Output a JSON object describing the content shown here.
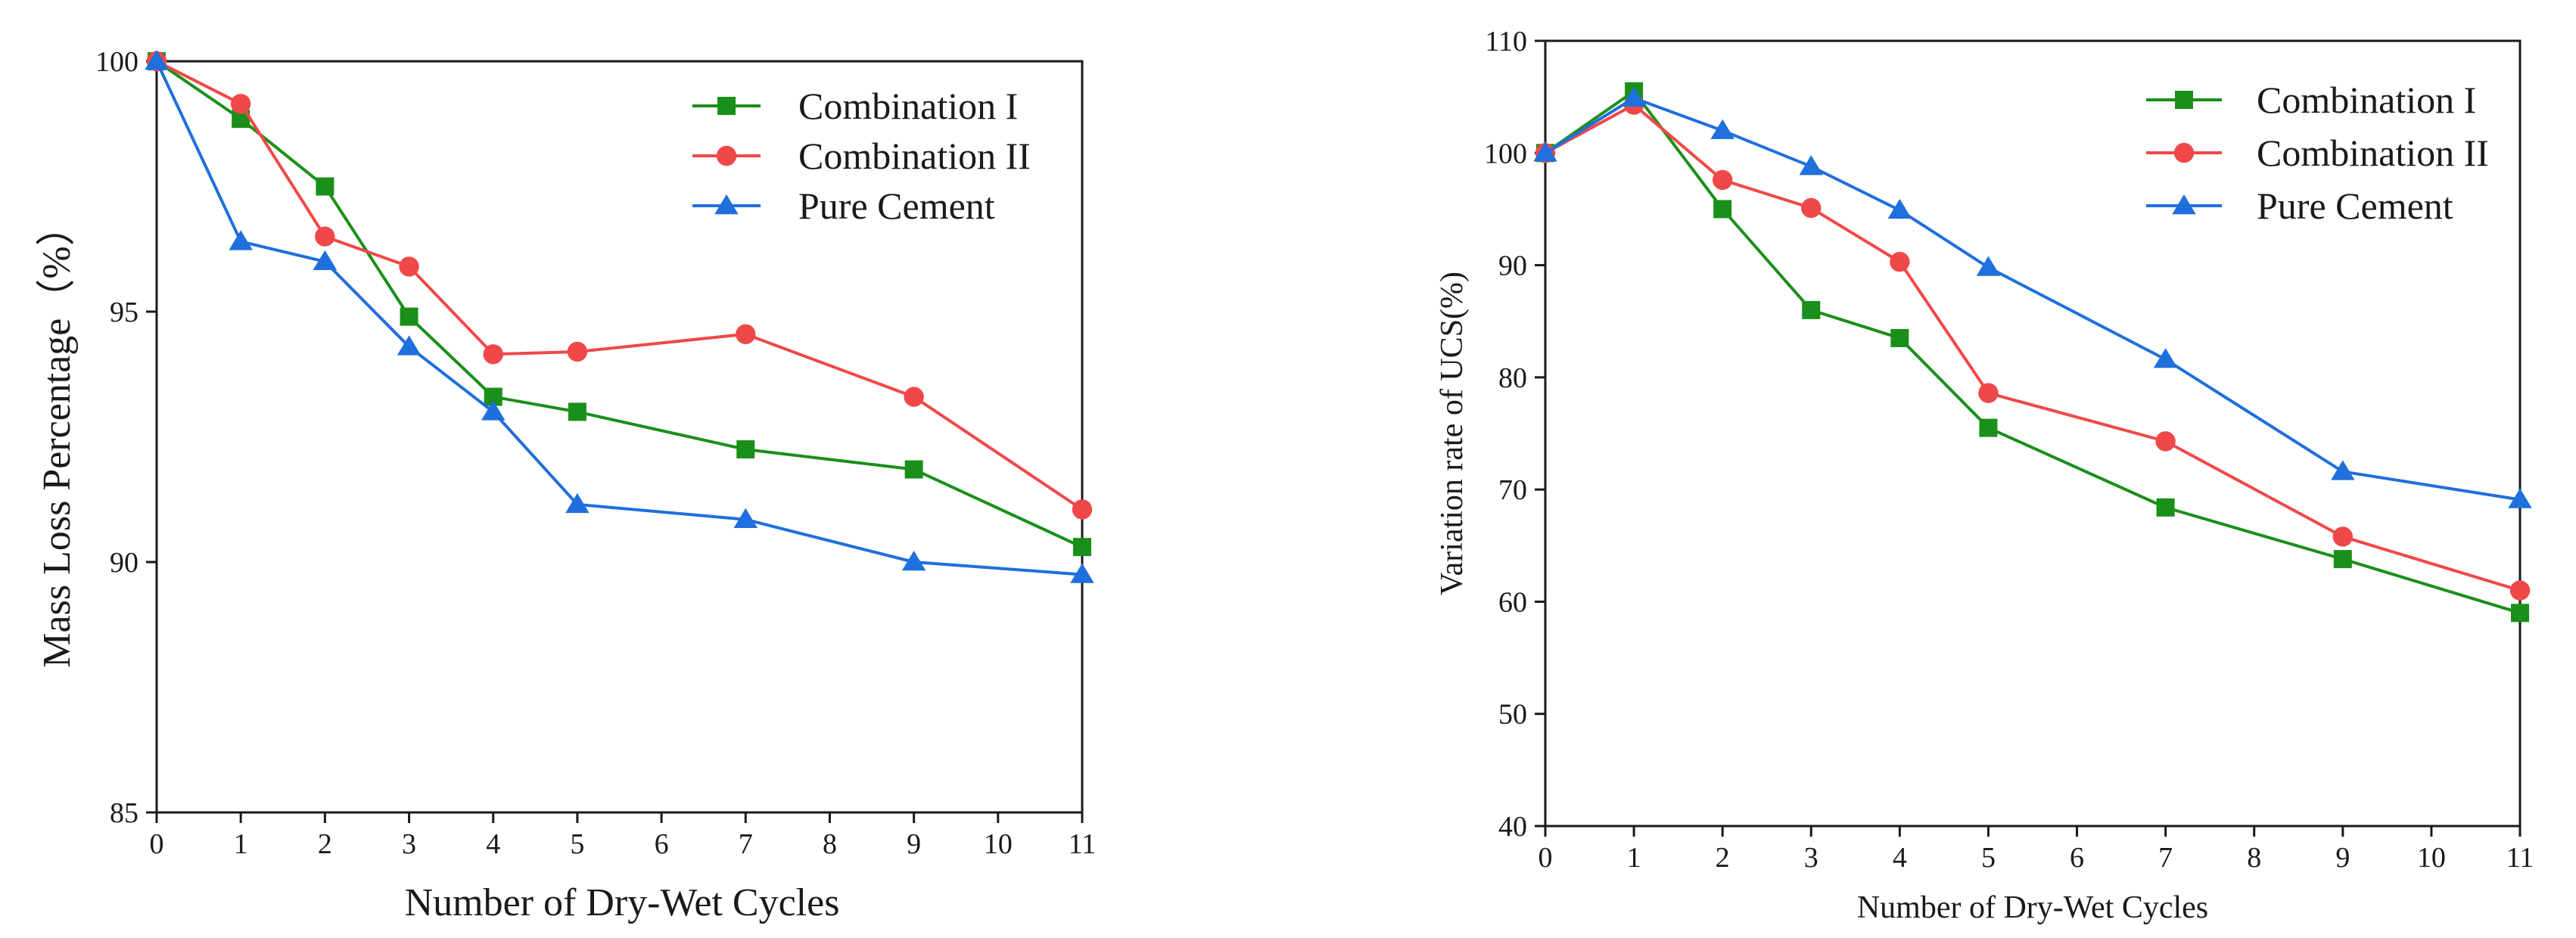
{
  "chart_data": [
    {
      "type": "line",
      "title": "",
      "xlabel": "Number of Dry-Wet Cycles",
      "ylabel": "Mass Loss Percentage（%）",
      "xlim": [
        0,
        11
      ],
      "ylim": [
        85,
        100
      ],
      "xticks": [
        0,
        1,
        2,
        3,
        4,
        5,
        6,
        7,
        8,
        9,
        10,
        11
      ],
      "yticks": [
        85,
        90,
        95,
        100
      ],
      "legend_position": "top-right",
      "grid": false,
      "series": [
        {
          "name": "Combination I",
          "color": "#1a8f1a",
          "marker": "square",
          "x": [
            0,
            1,
            2,
            3,
            4,
            5,
            7,
            9,
            11
          ],
          "y": [
            100,
            98.85,
            97.5,
            94.9,
            93.3,
            93.0,
            92.25,
            91.85,
            90.3
          ]
        },
        {
          "name": "Combination II",
          "color": "#f04848",
          "marker": "circle",
          "x": [
            0,
            1,
            2,
            3,
            4,
            5,
            7,
            9,
            11
          ],
          "y": [
            100,
            99.15,
            96.5,
            95.9,
            94.15,
            94.2,
            94.55,
            93.3,
            91.05
          ]
        },
        {
          "name": "Pure Cement",
          "color": "#1f6fdc",
          "marker": "triangle",
          "x": [
            0,
            1,
            2,
            3,
            4,
            5,
            7,
            9,
            11
          ],
          "y": [
            100,
            96.4,
            96.0,
            94.3,
            93.0,
            91.15,
            90.85,
            90.0,
            89.75
          ]
        }
      ]
    },
    {
      "type": "line",
      "title": "",
      "xlabel": "Number of Dry-Wet Cycles",
      "ylabel": "Variation rate of UCS(%)",
      "xlim": [
        0,
        11
      ],
      "ylim": [
        40,
        110
      ],
      "xticks": [
        0,
        1,
        2,
        3,
        4,
        5,
        6,
        7,
        8,
        9,
        10,
        11
      ],
      "yticks": [
        40,
        50,
        60,
        70,
        80,
        90,
        100,
        110
      ],
      "legend_position": "top-right",
      "grid": false,
      "series": [
        {
          "name": "Combination I",
          "color": "#1a8f1a",
          "marker": "square",
          "x": [
            0,
            1,
            2,
            3,
            4,
            5,
            7,
            9,
            11
          ],
          "y": [
            100,
            105.5,
            95.0,
            86.0,
            83.5,
            75.5,
            68.4,
            63.8,
            59.0
          ]
        },
        {
          "name": "Combination II",
          "color": "#f04848",
          "marker": "circle",
          "x": [
            0,
            1,
            2,
            3,
            4,
            5,
            7,
            9,
            11
          ],
          "y": [
            100,
            104.3,
            97.6,
            95.1,
            90.3,
            78.6,
            74.3,
            65.8,
            61.0
          ]
        },
        {
          "name": "Pure Cement",
          "color": "#1f6fdc",
          "marker": "triangle",
          "x": [
            0,
            1,
            2,
            3,
            4,
            5,
            7,
            9,
            11
          ],
          "y": [
            100,
            104.9,
            102.0,
            98.8,
            94.9,
            89.8,
            81.6,
            71.6,
            69.1
          ]
        }
      ]
    }
  ]
}
